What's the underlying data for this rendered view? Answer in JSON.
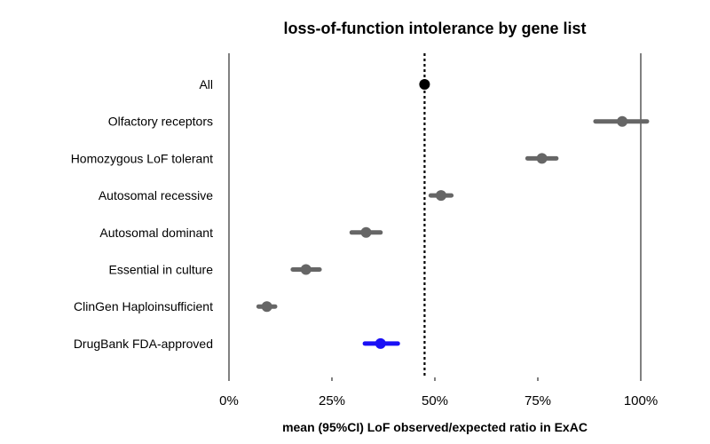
{
  "chart_data": {
    "type": "forest",
    "title": "loss-of-function intolerance by gene list",
    "xlabel": "mean (95%CI) LoF observed/expected ratio in ExAC",
    "ylabel": "",
    "xlim": [
      0,
      1
    ],
    "xticks": [
      0,
      0.25,
      0.5,
      0.75,
      1
    ],
    "xtick_labels": [
      "0%",
      "25%",
      "50%",
      "75%",
      "100%"
    ],
    "reference_line": {
      "x": 0.475,
      "style": "dotted"
    },
    "boundary_lines": [
      0,
      1
    ],
    "series": [
      {
        "name": "All",
        "mean": 0.475,
        "lower": 0.475,
        "upper": 0.475,
        "color": "#000000"
      },
      {
        "name": "Olfactory receptors",
        "mean": 0.955,
        "lower": 0.89,
        "upper": 1.015,
        "color": "#666666"
      },
      {
        "name": "Homozygous LoF tolerant",
        "mean": 0.76,
        "lower": 0.725,
        "upper": 0.795,
        "color": "#666666"
      },
      {
        "name": "Autosomal recessive",
        "mean": 0.515,
        "lower": 0.49,
        "upper": 0.54,
        "color": "#666666"
      },
      {
        "name": "Autosomal dominant",
        "mean": 0.333,
        "lower": 0.298,
        "upper": 0.368,
        "color": "#666666"
      },
      {
        "name": "Essential in culture",
        "mean": 0.187,
        "lower": 0.155,
        "upper": 0.22,
        "color": "#666666"
      },
      {
        "name": "ClinGen Haploinsufficient",
        "mean": 0.092,
        "lower": 0.072,
        "upper": 0.112,
        "color": "#666666"
      },
      {
        "name": "DrugBank FDA-approved",
        "mean": 0.368,
        "lower": 0.33,
        "upper": 0.41,
        "color": "#1a10f5"
      }
    ]
  }
}
